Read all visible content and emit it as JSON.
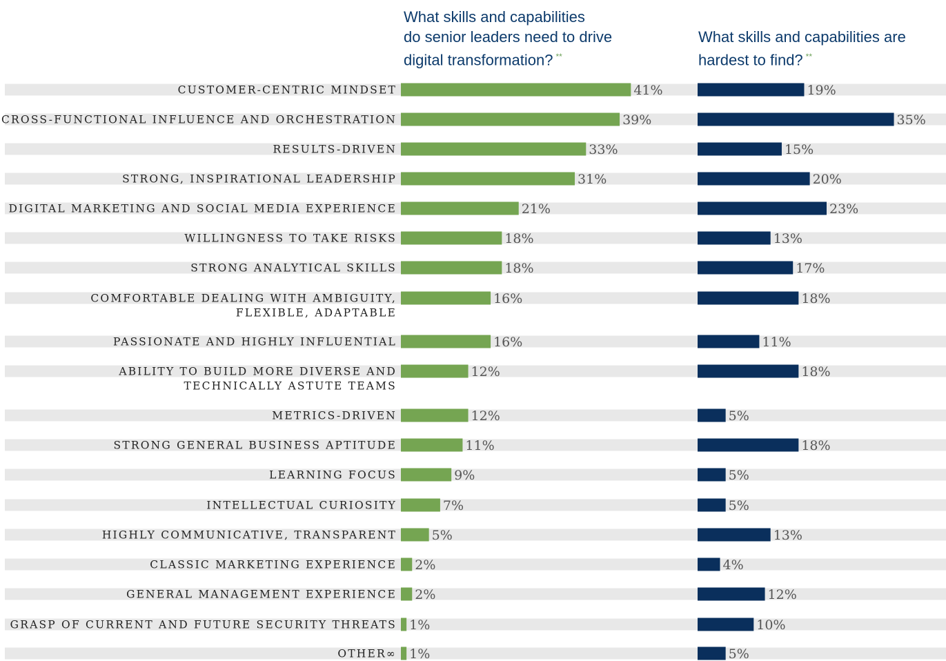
{
  "header1": {
    "text": "What skills and capabilities\ndo senior leaders need to drive\ndigital transformation?",
    "note": "**"
  },
  "header2": {
    "text": "What skills and capabilities are\nhardest to find?",
    "note": "**"
  },
  "colors": {
    "green": "#75a552",
    "navy": "#0a2f5c",
    "track": "#e8e8e8"
  },
  "chart_data": {
    "type": "bar",
    "orientation": "horizontal",
    "categories": [
      "CUSTOMER-CENTRIC MINDSET",
      "CROSS-FUNCTIONAL INFLUENCE AND ORCHESTRATION",
      "RESULTS-DRIVEN",
      "STRONG, INSPIRATIONAL LEADERSHIP",
      "DIGITAL MARKETING AND SOCIAL MEDIA EXPERIENCE",
      "WILLINGNESS TO TAKE RISKS",
      "STRONG ANALYTICAL SKILLS",
      "COMFORTABLE DEALING WITH AMBIGUITY, FLEXIBLE, ADAPTABLE",
      "PASSIONATE AND HIGHLY INFLUENTIAL",
      "ABILITY TO BUILD MORE DIVERSE AND TECHNICALLY ASTUTE TEAMS",
      "METRICS-DRIVEN",
      "STRONG GENERAL BUSINESS APTITUDE",
      "LEARNING FOCUS",
      "INTELLECTUAL CURIOSITY",
      "HIGHLY COMMUNICATIVE, TRANSPARENT",
      "CLASSIC MARKETING EXPERIENCE",
      "GENERAL MANAGEMENT EXPERIENCE",
      "GRASP OF CURRENT AND FUTURE SECURITY THREATS",
      "OTHER∞"
    ],
    "series": [
      {
        "values": [
          41,
          39,
          33,
          31,
          21,
          18,
          18,
          16,
          16,
          12,
          12,
          11,
          9,
          7,
          5,
          2,
          2,
          1,
          1
        ]
      },
      {
        "values": [
          19,
          35,
          15,
          20,
          23,
          13,
          17,
          18,
          11,
          18,
          5,
          18,
          5,
          5,
          13,
          4,
          12,
          10,
          5
        ]
      }
    ],
    "value_format": "{v}%"
  }
}
